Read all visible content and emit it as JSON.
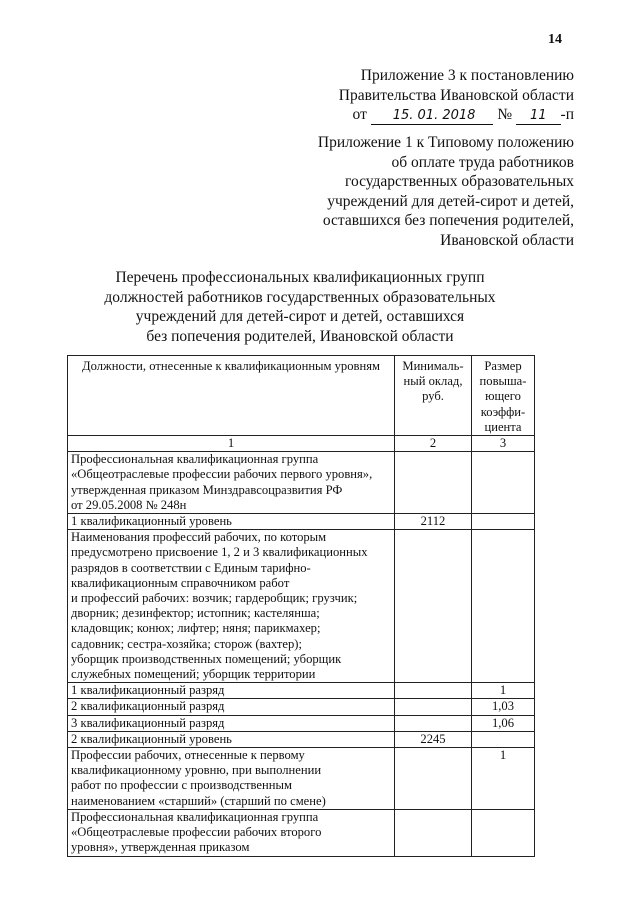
{
  "page_number": "14",
  "appendix3": {
    "line1": "Приложение 3 к постановлению",
    "line2": "Правительства Ивановской области",
    "from_label": "от",
    "date": "15. 01. 2018",
    "number_label": "№",
    "number": "11",
    "suffix": "-п"
  },
  "appendix1": "Приложение 1 к Типовому положению\nоб оплате труда работников\nгосударственных образовательных\nучреждений для детей-сирот и детей,\nоставшихся без попечения родителей,\nИвановской области",
  "title": "Перечень профессиональных квалификационных групп\nдолжностей работников государственных образовательных\nучреждений для детей-сирот и детей, оставшихся\nбез попечения родителей, Ивановской области",
  "table": {
    "headers": [
      "Должности, отнесенные к квалификационным уровням",
      "Минималь-\nный оклад,\nруб.",
      "Размер\nповыша-\nющего\nкоэффи-\nциента"
    ],
    "col_numbers": [
      "1",
      "2",
      "3"
    ],
    "rows": [
      {
        "c1": "Профессиональная квалификационная группа\n«Общеотраслевые профессии рабочих первого уровня»,\nутвержденная приказом Минздравсоцразвития РФ\nот 29.05.2008 № 248н",
        "c2": "",
        "c3": ""
      },
      {
        "c1": "1 квалификационный уровень",
        "c2": "2112",
        "c3": ""
      },
      {
        "c1": "Наименования профессий рабочих, по которым\nпредусмотрено присвоение 1, 2 и 3 квалификационных\nразрядов в соответствии с Единым тарифно-\nквалификационным справочником работ\nи профессий рабочих: возчик; гардеробщик; грузчик;\nдворник; дезинфектор; истопник; кастелянша;\nкладовщик; конюх; лифтер; няня; парикмахер;\nсадовник; сестра-хозяйка; сторож (вахтер);\nуборщик производственных помещений; уборщик\nслужебных помещений; уборщик территории",
        "c2": "",
        "c3": ""
      },
      {
        "c1": "1 квалификационный разряд",
        "c2": "",
        "c3": "1"
      },
      {
        "c1": "2 квалификационный разряд",
        "c2": "",
        "c3": "1,03"
      },
      {
        "c1": "3 квалификационный разряд",
        "c2": "",
        "c3": "1,06"
      },
      {
        "c1": "2 квалификационный уровень",
        "c2": "2245",
        "c3": ""
      },
      {
        "c1": "Профессии рабочих, отнесенные к первому\nквалификационному уровню, при выполнении\nработ по профессии с производственным\nнаименованием «старший» (старший по смене)",
        "c2": "",
        "c3": "1"
      },
      {
        "c1": "Профессиональная квалификационная группа\n«Общеотраслевые профессии рабочих второго\nуровня», утвержденная приказом",
        "c2": "",
        "c3": ""
      }
    ]
  }
}
